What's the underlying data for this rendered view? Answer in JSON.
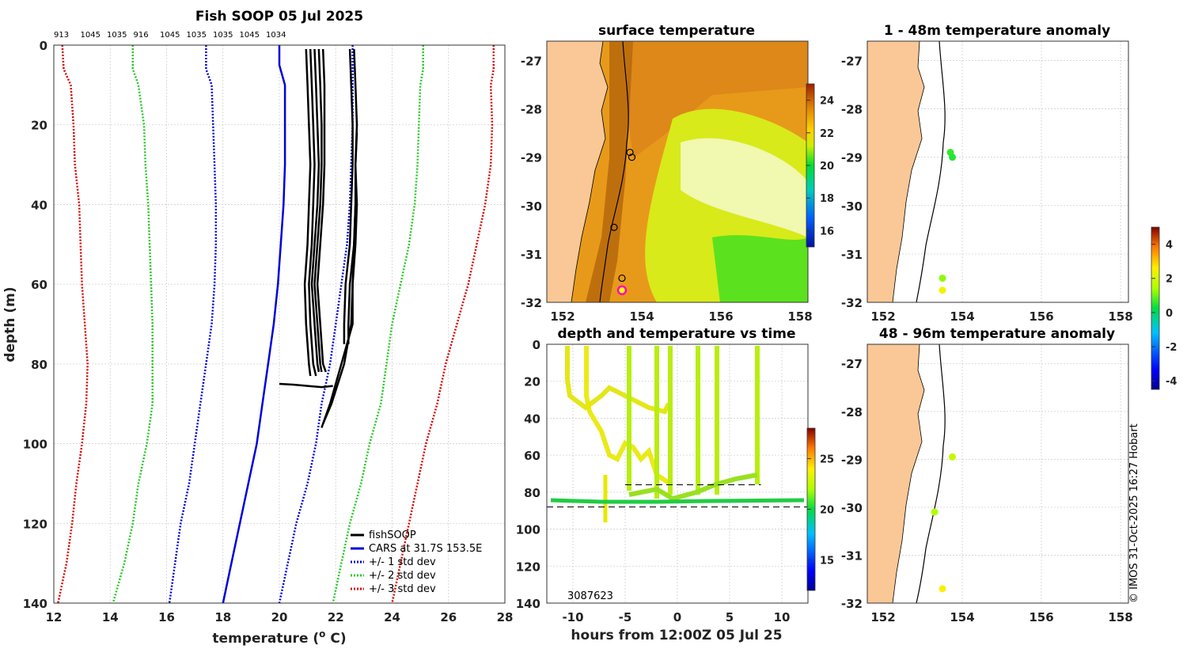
{
  "colors": {
    "land": "#f9c896",
    "grid": "#d0d0d0",
    "fish": "#000000",
    "cars": "#0000dd",
    "sd1": "#0000dd",
    "sd2": "#22cc22",
    "sd3": "#dd0000",
    "sst_dark": "#c76a00",
    "sst_mid": "#e79a1a",
    "sst_light": "#d8ea1a"
  },
  "chart_data": [
    {
      "id": "profile",
      "type": "line",
      "title": "Fish SOOP 05 Jul 2025",
      "xlabel": "temperature (",
      "xlabel_sup": "o",
      "xlabel_tail": " C)",
      "ylabel": "depth (m)",
      "xlim": [
        12,
        28
      ],
      "ylim": [
        0,
        140
      ],
      "xticks": [
        12,
        14,
        16,
        18,
        20,
        22,
        24,
        26,
        28
      ],
      "yticks": [
        0,
        20,
        40,
        60,
        80,
        100,
        120,
        140
      ],
      "top_labels": [
        "913",
        "1045",
        "1035",
        "916",
        "1045",
        "1035",
        "1035",
        "1045",
        "1034"
      ],
      "series": [
        {
          "name": "+/- 3 std dev (low)",
          "style": "sd3",
          "depth": [
            0,
            6,
            10,
            20,
            30,
            40,
            50,
            60,
            70,
            80,
            90,
            100,
            110,
            120,
            130,
            140
          ],
          "temp": [
            12.3,
            12.35,
            12.6,
            12.7,
            12.75,
            12.9,
            12.95,
            13.0,
            13.1,
            13.2,
            13.15,
            13.0,
            12.8,
            12.65,
            12.45,
            12.15
          ]
        },
        {
          "name": "+/- 2 std dev (low)",
          "style": "sd2",
          "depth": [
            0,
            6,
            10,
            20,
            30,
            40,
            50,
            60,
            70,
            80,
            90,
            100,
            110,
            120,
            130,
            140
          ],
          "temp": [
            14.8,
            14.8,
            15.0,
            15.2,
            15.25,
            15.35,
            15.4,
            15.45,
            15.5,
            15.5,
            15.5,
            15.3,
            15.0,
            14.8,
            14.5,
            14.1
          ]
        },
        {
          "name": "+/- 1 std dev (low)",
          "style": "sd1",
          "depth": [
            0,
            6,
            10,
            20,
            30,
            40,
            50,
            60,
            70,
            80,
            90,
            100,
            110,
            120,
            130,
            140
          ],
          "temp": [
            17.4,
            17.4,
            17.6,
            17.65,
            17.7,
            17.75,
            17.75,
            17.7,
            17.6,
            17.4,
            17.2,
            17.0,
            16.8,
            16.5,
            16.3,
            16.1
          ]
        },
        {
          "name": "CARS at 31.7S 153.5E",
          "style": "cars",
          "depth": [
            0,
            5,
            10,
            20,
            30,
            40,
            50,
            60,
            70,
            80,
            90,
            100,
            110,
            120,
            130,
            140
          ],
          "temp": [
            20.0,
            20.0,
            20.2,
            20.2,
            20.2,
            20.15,
            20.05,
            19.95,
            19.8,
            19.6,
            19.4,
            19.2,
            18.9,
            18.6,
            18.3,
            18.0
          ]
        },
        {
          "name": "+/- 1 std dev (high)",
          "style": "sd1",
          "depth": [
            0,
            6,
            10,
            20,
            30,
            40,
            50,
            60,
            70,
            80,
            90,
            100,
            110,
            120,
            130,
            140
          ],
          "temp": [
            22.6,
            22.6,
            22.6,
            22.6,
            22.55,
            22.5,
            22.4,
            22.2,
            22.0,
            21.8,
            21.5,
            21.3,
            21.0,
            20.6,
            20.3,
            20.0
          ]
        },
        {
          "name": "+/- 2 std dev (high)",
          "style": "sd2",
          "depth": [
            0,
            6,
            10,
            20,
            30,
            40,
            50,
            60,
            70,
            80,
            90,
            100,
            110,
            120,
            130,
            140
          ],
          "temp": [
            25.1,
            25.1,
            25.0,
            24.95,
            24.9,
            24.8,
            24.6,
            24.3,
            24.0,
            23.8,
            23.6,
            23.2,
            22.9,
            22.5,
            22.2,
            21.9
          ]
        },
        {
          "name": "+/- 3 std dev (high)",
          "style": "sd3",
          "depth": [
            0,
            6,
            10,
            20,
            30,
            40,
            50,
            60,
            70,
            80,
            90,
            100,
            110,
            120,
            130,
            140
          ],
          "temp": [
            27.6,
            27.6,
            27.5,
            27.55,
            27.5,
            27.3,
            27.0,
            26.7,
            26.3,
            25.9,
            25.6,
            25.2,
            24.9,
            24.6,
            24.3,
            24.0
          ]
        }
      ],
      "fish_casts": [
        {
          "depth": [
            1,
            10,
            20,
            30,
            40,
            50,
            60,
            70,
            80,
            83
          ],
          "temp": [
            20.95,
            21.0,
            21.05,
            21.1,
            21.05,
            21.0,
            20.9,
            20.95,
            21.05,
            21.1
          ]
        },
        {
          "depth": [
            1,
            10,
            20,
            30,
            40,
            50,
            60,
            70,
            80,
            83
          ],
          "temp": [
            21.1,
            21.15,
            21.2,
            21.25,
            21.2,
            21.15,
            21.05,
            21.1,
            21.2,
            21.3
          ]
        },
        {
          "depth": [
            1,
            10,
            20,
            30,
            40,
            50,
            60,
            70,
            80,
            82
          ],
          "temp": [
            21.25,
            21.3,
            21.35,
            21.4,
            21.35,
            21.25,
            21.15,
            21.25,
            21.35,
            21.4
          ]
        },
        {
          "depth": [
            1,
            10,
            20,
            30,
            40,
            50,
            60,
            70,
            80,
            82
          ],
          "temp": [
            21.4,
            21.45,
            21.5,
            21.5,
            21.45,
            21.35,
            21.25,
            21.35,
            21.45,
            21.5
          ]
        },
        {
          "depth": [
            1,
            10,
            20,
            30,
            40,
            50,
            60,
            70,
            80,
            82
          ],
          "temp": [
            21.55,
            21.6,
            21.6,
            21.6,
            21.55,
            21.45,
            21.35,
            21.45,
            21.55,
            21.65
          ]
        },
        {
          "depth": [
            1,
            10,
            20,
            30,
            40,
            50,
            60,
            70,
            75
          ],
          "temp": [
            22.5,
            22.55,
            22.6,
            22.6,
            22.55,
            22.5,
            22.35,
            22.3,
            22.3
          ]
        },
        {
          "depth": [
            1,
            10,
            20,
            30,
            40,
            50,
            60,
            70,
            75
          ],
          "temp": [
            22.65,
            22.7,
            22.75,
            22.7,
            22.7,
            22.65,
            22.5,
            22.45,
            22.45
          ]
        },
        {
          "depth": [
            22,
            30,
            40,
            50,
            60,
            70,
            80,
            90,
            96
          ],
          "temp": [
            22.75,
            22.7,
            22.75,
            22.7,
            22.6,
            22.6,
            22.2,
            21.8,
            21.5
          ]
        },
        {
          "depth": [
            40,
            50,
            60,
            70,
            80,
            90,
            95
          ],
          "temp": [
            22.7,
            22.65,
            22.6,
            22.55,
            22.3,
            21.85,
            21.55
          ]
        },
        {
          "depth": [
            85,
            85.2,
            85.5,
            85.8,
            85.5
          ],
          "temp": [
            20.0,
            20.5,
            21.0,
            21.5,
            21.9
          ]
        }
      ],
      "legend": [
        "fishSOOP",
        "CARS at 31.7S 153.5E",
        "+/- 1 std dev",
        "+/- 2 std dev",
        "+/- 3 std dev"
      ]
    },
    {
      "id": "sst_map",
      "type": "heatmap",
      "title": "surface temperature",
      "xlim": [
        151.6,
        158.2
      ],
      "ylim": [
        -32,
        -26.6
      ],
      "xticks": [
        152,
        154,
        156,
        158
      ],
      "yticks": [
        -27,
        -28,
        -29,
        -30,
        -31,
        -32
      ],
      "colorbar": {
        "ticks": [
          16,
          18,
          20,
          22,
          24
        ],
        "range": [
          15,
          25
        ]
      },
      "cast_markers": [
        {
          "lon": 153.7,
          "lat": -28.9
        },
        {
          "lon": 153.75,
          "lat": -29.0
        },
        {
          "lon": 153.3,
          "lat": -30.45
        },
        {
          "lon": 153.5,
          "lat": -31.5
        }
      ],
      "highlight_marker": {
        "lon": 153.5,
        "lat": -31.75
      }
    },
    {
      "id": "time_series",
      "type": "scatter",
      "title": "depth and temperature vs time",
      "xlabel": "hours from 12:00Z 05 Jul 25",
      "xlim": [
        -12.5,
        12.5
      ],
      "ylim": [
        0,
        140
      ],
      "xticks": [
        -10,
        -5,
        0,
        5,
        10
      ],
      "yticks": [
        0,
        20,
        40,
        60,
        80,
        100,
        120,
        140
      ],
      "colorbar": {
        "ticks": [
          15,
          20,
          25
        ],
        "range": [
          12,
          28
        ]
      },
      "reference_depths": [
        76,
        88
      ],
      "annotation": "3087623"
    },
    {
      "id": "anom_top",
      "type": "scatter",
      "title": "1 - 48m temperature anomaly",
      "xlim": [
        151.6,
        158.2
      ],
      "ylim": [
        -32,
        -26.6
      ],
      "xticks": [
        152,
        154,
        156,
        158
      ],
      "yticks": [
        -27,
        -28,
        -29,
        -30,
        -31,
        -32
      ],
      "points": [
        {
          "lon": 153.7,
          "lat": -28.9,
          "value": 0.6
        },
        {
          "lon": 153.75,
          "lat": -29.0,
          "value": 0.5
        },
        {
          "lon": 153.5,
          "lat": -31.5,
          "value": 1.2
        },
        {
          "lon": 153.5,
          "lat": -31.75,
          "value": 2.5
        }
      ]
    },
    {
      "id": "anom_bottom",
      "type": "scatter",
      "title": "48 - 96m temperature anomaly",
      "xlim": [
        151.6,
        158.2
      ],
      "ylim": [
        -32,
        -26.6
      ],
      "xticks": [
        152,
        154,
        156,
        158
      ],
      "yticks": [
        -27,
        -28,
        -29,
        -30,
        -31,
        -32
      ],
      "points": [
        {
          "lon": 153.75,
          "lat": -28.95,
          "value": 1.8
        },
        {
          "lon": 153.3,
          "lat": -30.1,
          "value": 1.5
        },
        {
          "lon": 153.5,
          "lat": -31.7,
          "value": 2.6
        }
      ],
      "colorbar": {
        "ticks": [
          4,
          2,
          0,
          -2,
          -4
        ],
        "range": [
          -4.5,
          5
        ]
      }
    }
  ],
  "credit": "© IMOS 31-Oct-2025 16:27 Hobart"
}
